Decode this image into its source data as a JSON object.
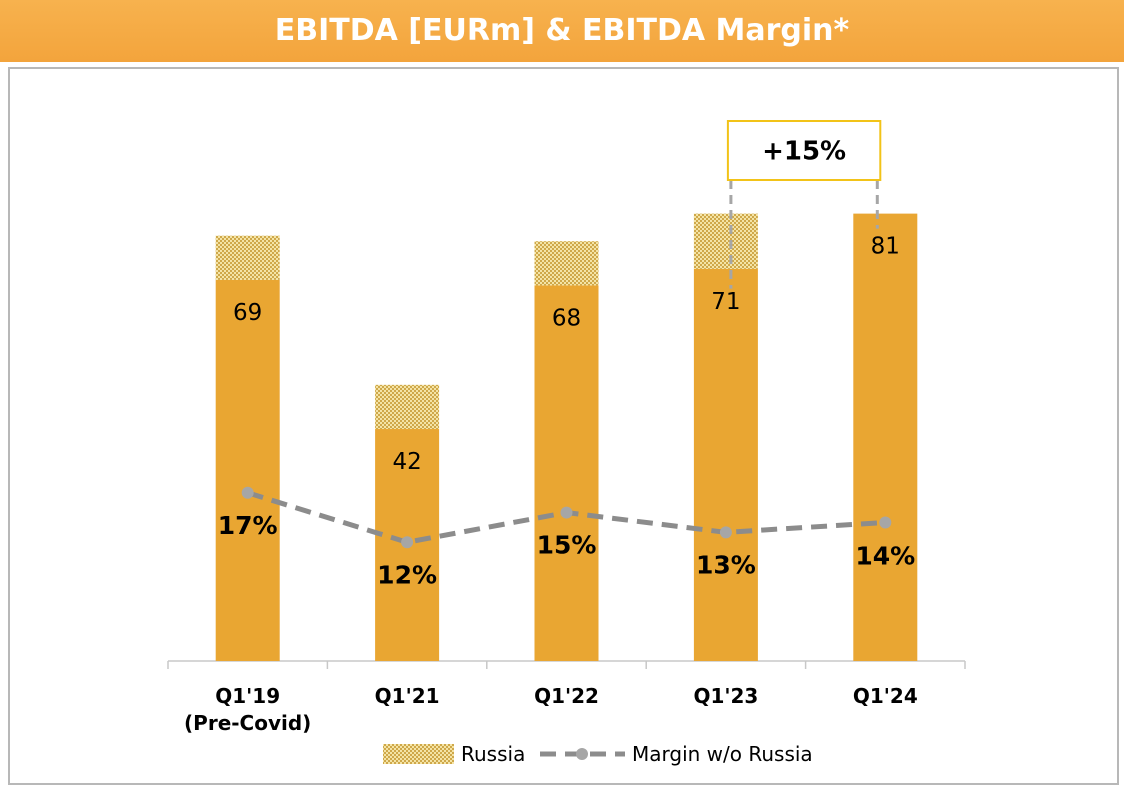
{
  "chart_data": {
    "type": "bar",
    "title": "EBITDA [EURm] & EBITDA Margin*",
    "categories": [
      "Q1'19\n(Pre-Covid)",
      "Q1'21",
      "Q1'22",
      "Q1'23",
      "Q1'24"
    ],
    "stacked": true,
    "series": [
      {
        "color": "#e9a632",
        "values": [
          69,
          42,
          68,
          71,
          81
        ]
      },
      {
        "name": "Russia",
        "color": "#e2c56a",
        "pattern": "hatched",
        "values": [
          8,
          8,
          8,
          10,
          0
        ]
      },
      {
        "name": "Margin w/o Russia",
        "type": "line",
        "axis": "y2",
        "color": "#8c8c8c",
        "dashed": true,
        "values": [
          17,
          12,
          15,
          13,
          14
        ],
        "value_labels": [
          "17%",
          "12%",
          "15%",
          "13%",
          "14%"
        ]
      }
    ],
    "ylim": [
      0,
      86
    ],
    "y2lim": [
      0,
      48
    ],
    "annotation": {
      "text": "+15%",
      "from": 3,
      "to": 4,
      "color": "#f2c318"
    },
    "legend": "bottom"
  }
}
